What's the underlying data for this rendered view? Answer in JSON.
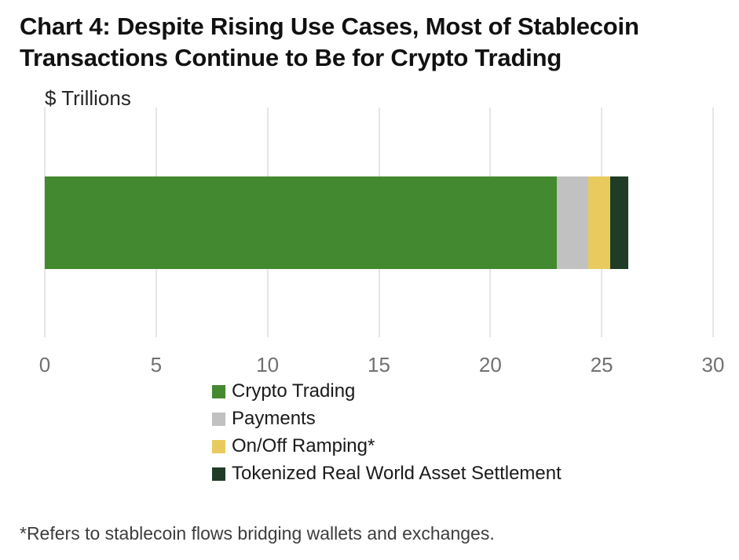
{
  "title": {
    "line1": "Chart 4: Despite Rising Use Cases, Most of Stablecoin",
    "line2": "Transactions Continue to Be for Crypto Trading"
  },
  "axis_unit_label": "$ Trillions",
  "footnote": "*Refers to stablecoin flows bridging wallets and exchanges.",
  "colors": {
    "crypto_trading": "#43892f",
    "payments": "#c1c1c1",
    "on_off_ramping": "#e9ca5f",
    "tokenized_rwa": "#1f3c26",
    "gridline": "#e6e6e6",
    "tick_label": "#707070",
    "title_text": "#111111"
  },
  "chart_data": {
    "type": "bar",
    "orientation": "horizontal",
    "stacked": true,
    "title": "Chart 4: Despite Rising Use Cases, Most of Stablecoin Transactions Continue to Be for Crypto Trading",
    "unit": "$ Trillions",
    "xlabel": "",
    "ylabel": "",
    "xlim": [
      0,
      30
    ],
    "x_ticks": [
      0,
      5,
      10,
      15,
      20,
      25,
      30
    ],
    "grid": "vertical",
    "legend_position": "bottom",
    "series": [
      {
        "name": "Crypto Trading",
        "value": 23.0,
        "color": "#43892f"
      },
      {
        "name": "Payments",
        "value": 1.4,
        "color": "#c1c1c1"
      },
      {
        "name": "On/Off Ramping*",
        "value": 1.0,
        "color": "#e9ca5f"
      },
      {
        "name": "Tokenized Real World Asset Settlement",
        "value": 0.8,
        "color": "#1f3c26"
      }
    ],
    "total": 26.2
  }
}
